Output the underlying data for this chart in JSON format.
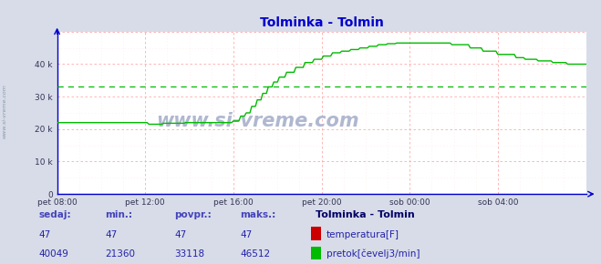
{
  "title": "Tolminka - Tolmin",
  "title_color": "#0000cc",
  "bg_color": "#d8dce8",
  "plot_bg_color": "#ffffff",
  "grid_color_major": "#ffaaaa",
  "grid_color_minor": "#ffe8e8",
  "axes_color": "#0000cc",
  "xlim_min": 0,
  "xlim_max": 288,
  "ylim_min": 0,
  "ylim_max": 50000,
  "yticks": [
    0,
    10000,
    20000,
    30000,
    40000
  ],
  "ytick_labels": [
    "0",
    "10 k",
    "20 k",
    "30 k",
    "40 k"
  ],
  "xtick_positions": [
    0,
    48,
    96,
    144,
    192,
    240
  ],
  "xtick_labels": [
    "pet 08:00",
    "pet 12:00",
    "pet 16:00",
    "pet 20:00",
    "sob 00:00",
    "sob 04:00"
  ],
  "flow_color": "#00bb00",
  "flow_avg_color": "#00bb00",
  "temp_color": "#cc0000",
  "watermark": "www.si-vreme.com",
  "watermark_color": "#b0b8d0",
  "legend_title": "Tolminka - Tolmin",
  "legend_title_color": "#000066",
  "sedaj_label": "sedaj:",
  "min_label": "min.:",
  "povpr_label": "povpr.:",
  "maks_label": "maks.:",
  "temp_sedaj": 47,
  "temp_min": 47,
  "temp_povpr": 47,
  "temp_maks": 47,
  "flow_sedaj": 40049,
  "flow_min": 21360,
  "flow_povpr": 33118,
  "flow_maks": 46512,
  "label_color": "#4444bb",
  "value_color": "#2222aa",
  "flow_avg": 33118
}
